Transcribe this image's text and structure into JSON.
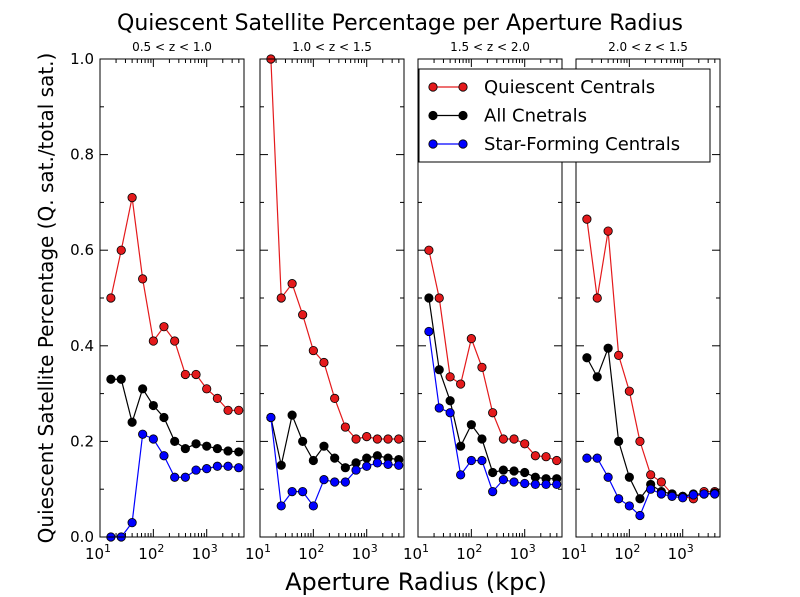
{
  "chart_data": {
    "type": "line",
    "title": "Quiescent Satellite Percentage per Aperture Radius",
    "xlabel": "Aperture Radius (kpc)",
    "ylabel": "Quiescent Satellite Percentage (Q. sat./total sat.)",
    "xscale": "log",
    "xlim": [
      10,
      5000
    ],
    "ylim": [
      0.0,
      1.0
    ],
    "yticks": [
      "0.0",
      "0.2",
      "0.4",
      "0.6",
      "0.8",
      "1.0"
    ],
    "xtick_base": "10",
    "xtick_exponents": [
      "1",
      "2",
      "3"
    ],
    "legend": {
      "placement": "top-right",
      "entries": [
        "Quiescent Centrals",
        "All Cnetrals",
        "Star-Forming Centrals"
      ]
    },
    "series_colors": [
      "#e41a1c",
      "#000000",
      "#0000ff"
    ],
    "x": [
      16,
      25,
      40,
      63,
      100,
      158,
      251,
      398,
      631,
      1000,
      1585,
      2512,
      3981
    ],
    "panels": [
      {
        "label": "0.5 < z < 1.0",
        "series": [
          {
            "name": "Quiescent Centrals",
            "values": [
              0.5,
              0.6,
              0.71,
              0.54,
              0.41,
              0.44,
              0.41,
              0.34,
              0.34,
              0.31,
              0.29,
              0.265,
              0.265
            ]
          },
          {
            "name": "All Cnetrals",
            "values": [
              0.33,
              0.33,
              0.24,
              0.31,
              0.275,
              0.25,
              0.2,
              0.185,
              0.195,
              0.19,
              0.185,
              0.18,
              0.178
            ]
          },
          {
            "name": "Star-Forming Centrals",
            "values": [
              0.0,
              0.0,
              0.03,
              0.215,
              0.205,
              0.17,
              0.125,
              0.125,
              0.14,
              0.143,
              0.148,
              0.148,
              0.145
            ]
          }
        ]
      },
      {
        "label": "1.0 < z < 1.5",
        "series": [
          {
            "name": "Quiescent Centrals",
            "values": [
              1.0,
              0.5,
              0.53,
              0.465,
              0.39,
              0.365,
              0.29,
              0.23,
              0.205,
              0.21,
              0.205,
              0.205,
              0.205
            ]
          },
          {
            "name": "All Cnetrals",
            "values": [
              0.25,
              0.15,
              0.255,
              0.2,
              0.16,
              0.19,
              0.165,
              0.145,
              0.155,
              0.165,
              0.17,
              0.165,
              0.162
            ]
          },
          {
            "name": "Star-Forming Centrals",
            "values": [
              0.25,
              0.065,
              0.095,
              0.095,
              0.065,
              0.12,
              0.115,
              0.115,
              0.14,
              0.148,
              0.155,
              0.152,
              0.15
            ]
          }
        ]
      },
      {
        "label": "1.5 < z < 2.0",
        "series": [
          {
            "name": "Quiescent Centrals",
            "values": [
              0.6,
              0.5,
              0.335,
              0.32,
              0.415,
              0.355,
              0.26,
              0.205,
              0.205,
              0.195,
              0.17,
              0.168,
              0.16
            ]
          },
          {
            "name": "All Cnetrals",
            "values": [
              0.5,
              0.35,
              0.285,
              0.19,
              0.235,
              0.205,
              0.135,
              0.14,
              0.138,
              0.135,
              0.125,
              0.122,
              0.122
            ]
          },
          {
            "name": "Star-Forming Centrals",
            "values": [
              0.43,
              0.27,
              0.26,
              0.13,
              0.16,
              0.16,
              0.095,
              0.12,
              0.115,
              0.112,
              0.11,
              0.11,
              0.11
            ]
          }
        ]
      },
      {
        "label": "2.0 < z < 1.5",
        "series": [
          {
            "name": "Quiescent Centrals",
            "values": [
              0.665,
              0.5,
              0.64,
              0.38,
              0.305,
              0.2,
              0.13,
              0.115,
              0.09,
              0.085,
              0.08,
              0.095,
              0.095
            ]
          },
          {
            "name": "All Cnetrals",
            "values": [
              0.375,
              0.335,
              0.395,
              0.2,
              0.125,
              0.08,
              0.11,
              0.095,
              0.09,
              0.085,
              0.09,
              0.09,
              0.092
            ]
          },
          {
            "name": "Star-Forming Centrals",
            "values": [
              0.165,
              0.165,
              0.125,
              0.08,
              0.065,
              0.045,
              0.1,
              0.09,
              0.085,
              0.082,
              0.088,
              0.09,
              0.09
            ]
          }
        ]
      }
    ]
  }
}
